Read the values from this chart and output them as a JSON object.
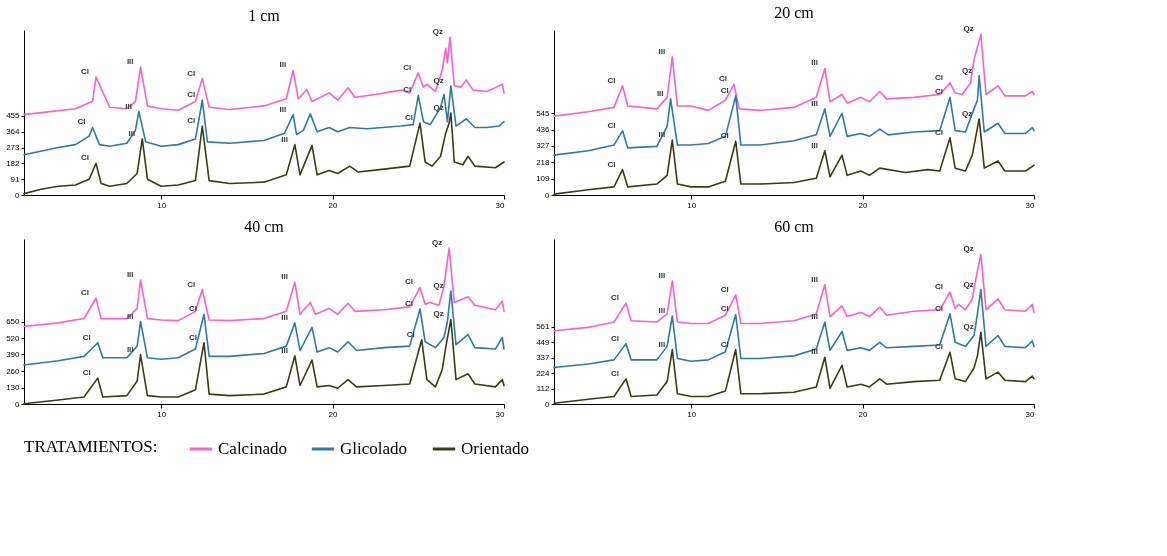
{
  "chart_data": [
    {
      "type": "line",
      "title": "1 cm",
      "legend_title": "TRATAMIENTOS:",
      "legend": "bottom",
      "xlim": [
        2,
        30
      ],
      "ylim": [
        0,
        950
      ],
      "xticks": [
        10,
        20,
        30
      ],
      "yticks": [
        0,
        91,
        182,
        273,
        364,
        455
      ],
      "series": [
        {
          "name": "Calcinado",
          "color": "#ff5fc8",
          "x": [
            2,
            5,
            6,
            6.2,
            7,
            8,
            8.5,
            8.8,
            9.2,
            10,
            11,
            12,
            12.4,
            12.8,
            14,
            16,
            17.3,
            17.7,
            18,
            18.5,
            18.8,
            19.8,
            20.3,
            20.9,
            21.3,
            22.5,
            24,
            24.5,
            25,
            25.3,
            25.5,
            26,
            26.4,
            26.6,
            26.7,
            26.85,
            27.1,
            27.5,
            27.8,
            28.2,
            29,
            29.9,
            30
          ],
          "values": [
            463,
            497,
            540,
            679,
            505,
            497,
            538,
            736,
            513,
            497,
            488,
            538,
            670,
            505,
            492,
            513,
            554,
            717,
            554,
            607,
            538,
            588,
            546,
            617,
            563,
            579,
            604,
            588,
            703,
            621,
            637,
            596,
            720,
            844,
            761,
            910,
            629,
            621,
            662,
            604,
            596,
            637,
            588
          ]
        },
        {
          "name": "Glicolado",
          "color": "#2b7ba8",
          "x": [
            2,
            4,
            5,
            5.8,
            6,
            6.4,
            7,
            8,
            8.5,
            8.7,
            9.1,
            10,
            11,
            12,
            12.3,
            12.4,
            12.7,
            14,
            16,
            17.2,
            17.7,
            17.9,
            18.3,
            18.7,
            19.1,
            19.8,
            20.3,
            21,
            22,
            24,
            24.7,
            25,
            25.3,
            25.7,
            26.3,
            26.5,
            26.7,
            26.9,
            27.2,
            27.8,
            28.3,
            29,
            29.7,
            30
          ],
          "values": [
            232,
            273,
            290,
            339,
            389,
            290,
            281,
            298,
            372,
            480,
            306,
            281,
            290,
            323,
            488,
            546,
            306,
            298,
            314,
            356,
            463,
            348,
            372,
            467,
            364,
            389,
            364,
            389,
            381,
            397,
            405,
            574,
            422,
            405,
            505,
            579,
            422,
            629,
            397,
            439,
            389,
            389,
            397,
            422
          ]
        },
        {
          "name": "Orientado",
          "color": "#3c3c14",
          "x": [
            2,
            3,
            4,
            5,
            5.8,
            6.2,
            6.5,
            7,
            8,
            8.6,
            8.9,
            9.2,
            10,
            11,
            12,
            12.4,
            12.8,
            14,
            16,
            17.3,
            17.8,
            18.1,
            18.8,
            19.1,
            19.8,
            20.3,
            21,
            21.5,
            23,
            24.5,
            25.1,
            25.4,
            25.8,
            26.3,
            26.6,
            26.8,
            26.9,
            27.1,
            27.6,
            27.9,
            28.3,
            29.5,
            30
          ],
          "values": [
            8,
            33,
            50,
            58,
            91,
            182,
            66,
            50,
            66,
            124,
            323,
            91,
            50,
            58,
            83,
            397,
            83,
            66,
            74,
            116,
            290,
            116,
            286,
            116,
            141,
            124,
            166,
            132,
            149,
            166,
            414,
            190,
            166,
            223,
            356,
            414,
            472,
            190,
            174,
            223,
            166,
            157,
            190
          ]
        }
      ],
      "annotations": [
        {
          "text": "Cl",
          "x": 6.2,
          "y": 679
        },
        {
          "text": "Ill",
          "x": 8.8,
          "y": 736
        },
        {
          "text": "Cl",
          "x": 12.4,
          "y": 670
        },
        {
          "text": "Ill",
          "x": 17.7,
          "y": 717
        },
        {
          "text": "Cl",
          "x": 25,
          "y": 703
        },
        {
          "text": "Qz",
          "x": 26.85,
          "y": 910
        },
        {
          "text": "Cl",
          "x": 6,
          "y": 389
        },
        {
          "text": "Ill",
          "x": 8.7,
          "y": 480
        },
        {
          "text": "Cl",
          "x": 12.4,
          "y": 546
        },
        {
          "text": "Ill",
          "x": 17.7,
          "y": 463
        },
        {
          "text": "Cl",
          "x": 25,
          "y": 574
        },
        {
          "text": "Qz",
          "x": 26.9,
          "y": 629
        },
        {
          "text": "Cl",
          "x": 6.2,
          "y": 182
        },
        {
          "text": "Ill",
          "x": 8.9,
          "y": 323
        },
        {
          "text": "Cl",
          "x": 12.4,
          "y": 397
        },
        {
          "text": "Ill",
          "x": 17.8,
          "y": 290
        },
        {
          "text": "Cl",
          "x": 25.1,
          "y": 414
        },
        {
          "text": "Qz",
          "x": 26.9,
          "y": 472
        }
      ]
    },
    {
      "type": "line",
      "title": "20 cm",
      "xlim": [
        2,
        30
      ],
      "ylim": [
        0,
        1100
      ],
      "xticks": [
        10,
        20,
        30
      ],
      "yticks": [
        0,
        109,
        218,
        327,
        436,
        545
      ],
      "series": [
        {
          "name": "Calcinado",
          "color": "#ff5fc8",
          "x": [
            2,
            4,
            5.5,
            6.0,
            6.3,
            8,
            8.6,
            8.9,
            9.2,
            10,
            11,
            12,
            12.5,
            12.8,
            14,
            16,
            17.3,
            17.8,
            18.1,
            18.8,
            19.1,
            19.9,
            20.4,
            21,
            21.4,
            23,
            24.5,
            25.1,
            25.4,
            25.8,
            26.3,
            26.5,
            26.9,
            27.2,
            27.9,
            28.3,
            29.5,
            29.9,
            30
          ],
          "values": [
            526,
            555,
            584,
            728,
            593,
            574,
            651,
            921,
            593,
            593,
            564,
            632,
            738,
            574,
            564,
            584,
            651,
            844,
            622,
            670,
            612,
            651,
            622,
            690,
            641,
            651,
            670,
            747,
            680,
            670,
            747,
            901,
            1071,
            670,
            728,
            661,
            661,
            690,
            670
          ]
        },
        {
          "name": "Glicolado",
          "color": "#2b7ba8",
          "x": [
            2,
            4,
            5.5,
            6.0,
            6.3,
            8,
            8.6,
            8.8,
            9.2,
            10,
            11,
            12,
            12.6,
            12.9,
            14,
            16,
            17.3,
            17.8,
            18.1,
            18.8,
            19.1,
            19.9,
            20.4,
            21,
            21.5,
            23,
            24.5,
            25.1,
            25.4,
            26,
            26.5,
            26.7,
            26.8,
            27.1,
            27.9,
            28.3,
            29.5,
            29.9,
            30
          ],
          "values": [
            266,
            295,
            333,
            429,
            314,
            324,
            458,
            641,
            333,
            333,
            343,
            391,
            661,
            333,
            333,
            362,
            401,
            574,
            391,
            545,
            391,
            410,
            391,
            439,
            401,
            420,
            429,
            651,
            429,
            420,
            574,
            632,
            795,
            420,
            478,
            410,
            410,
            449,
            429
          ]
        },
        {
          "name": "Orientado",
          "color": "#3c3c14",
          "x": [
            2,
            4,
            5.5,
            6.0,
            6.3,
            8,
            8.6,
            8.9,
            9.2,
            10,
            11,
            12,
            12.6,
            12.9,
            14,
            16,
            17.3,
            17.8,
            18.1,
            18.8,
            19.1,
            19.9,
            20.4,
            21,
            22.5,
            23.8,
            24.5,
            25.1,
            25.4,
            26,
            26.4,
            26.8,
            27.1,
            27.9,
            28.3,
            29.5,
            30
          ],
          "values": [
            6,
            35,
            54,
            169,
            54,
            73,
            131,
            366,
            73,
            54,
            54,
            92,
            358,
            73,
            73,
            83,
            112,
            295,
            121,
            266,
            131,
            160,
            131,
            179,
            150,
            169,
            160,
            381,
            179,
            160,
            266,
            507,
            179,
            227,
            160,
            160,
            198
          ]
        }
      ],
      "annotations": [
        {
          "text": "Cl",
          "x": 6.0,
          "y": 728
        },
        {
          "text": "Ill",
          "x": 8.9,
          "y": 921
        },
        {
          "text": "Cl",
          "x": 12.5,
          "y": 738
        },
        {
          "text": "Ill",
          "x": 17.8,
          "y": 844
        },
        {
          "text": "Cl",
          "x": 25.1,
          "y": 747
        },
        {
          "text": "Qz",
          "x": 26.9,
          "y": 1071
        },
        {
          "text": "Cl",
          "x": 6.0,
          "y": 429
        },
        {
          "text": "Ill",
          "x": 8.8,
          "y": 641
        },
        {
          "text": "Cl",
          "x": 12.6,
          "y": 661
        },
        {
          "text": "Ill",
          "x": 17.8,
          "y": 574
        },
        {
          "text": "Cl",
          "x": 25.1,
          "y": 651
        },
        {
          "text": "Qz",
          "x": 26.8,
          "y": 795
        },
        {
          "text": "Cl",
          "x": 6.0,
          "y": 169
        },
        {
          "text": "Ill",
          "x": 8.9,
          "y": 366
        },
        {
          "text": "Cl",
          "x": 12.6,
          "y": 358
        },
        {
          "text": "Ill",
          "x": 17.8,
          "y": 295
        },
        {
          "text": "Cl",
          "x": 25.1,
          "y": 381
        },
        {
          "text": "Qz",
          "x": 26.8,
          "y": 507
        }
      ]
    },
    {
      "type": "line",
      "title": "40 cm",
      "xlim": [
        2,
        30
      ],
      "ylim": [
        0,
        1300
      ],
      "xticks": [
        10,
        20,
        30
      ],
      "yticks": [
        0,
        130,
        260,
        390,
        520,
        650
      ],
      "series": [
        {
          "name": "Calcinado",
          "color": "#ff5fc8",
          "x": [
            2,
            4,
            5.5,
            6.2,
            6.5,
            8,
            8.6,
            8.8,
            9.2,
            10,
            11,
            12,
            12.4,
            12.8,
            14,
            16,
            17.3,
            17.8,
            18.1,
            18.7,
            19,
            19.8,
            20.3,
            20.9,
            21.3,
            23,
            24.5,
            25.1,
            25.4,
            25.7,
            26.2,
            26.5,
            26.8,
            27.1,
            27.9,
            28.3,
            29.5,
            29.9,
            30
          ],
          "values": [
            611,
            639,
            673,
            833,
            673,
            673,
            753,
            977,
            673,
            662,
            657,
            730,
            902,
            662,
            657,
            673,
            730,
            959,
            707,
            799,
            707,
            753,
            707,
            794,
            730,
            742,
            765,
            918,
            787,
            799,
            778,
            925,
            1229,
            799,
            845,
            778,
            742,
            810,
            730
          ]
        },
        {
          "name": "Glicolado",
          "color": "#2b7ba8",
          "x": [
            2,
            4,
            5.5,
            6.3,
            6.6,
            8,
            8.6,
            8.8,
            9.2,
            10,
            11,
            12,
            12.5,
            12.8,
            14,
            16,
            17.3,
            17.8,
            18.1,
            18.8,
            19.1,
            19.8,
            20.3,
            20.9,
            21.4,
            23,
            24.5,
            25.1,
            25.4,
            26,
            26.5,
            26.7,
            26.9,
            27.2,
            27.9,
            28.3,
            29.5,
            29.9,
            30
          ],
          "values": [
            307,
            341,
            375,
            483,
            364,
            364,
            456,
            650,
            364,
            352,
            364,
            433,
            707,
            375,
            375,
            398,
            456,
            639,
            421,
            604,
            410,
            444,
            410,
            490,
            421,
            444,
            456,
            749,
            490,
            444,
            524,
            650,
            890,
            467,
            547,
            444,
            433,
            524,
            433
          ]
        },
        {
          "name": "Orientado",
          "color": "#3c3c14",
          "x": [
            2,
            4,
            5.5,
            6.3,
            6.6,
            8,
            8.6,
            8.8,
            9.2,
            10,
            11,
            12,
            12.5,
            12.8,
            14,
            16,
            17.3,
            17.8,
            18.1,
            18.8,
            19.1,
            19.8,
            20.3,
            20.9,
            21.4,
            23,
            24.5,
            25.2,
            25.5,
            26,
            26.4,
            26.6,
            26.9,
            27.2,
            27.9,
            28.3,
            29.5,
            29.9,
            30
          ],
          "values": [
            2,
            32,
            55,
            204,
            55,
            66,
            181,
            387,
            66,
            55,
            55,
            112,
            483,
            78,
            66,
            78,
            135,
            380,
            146,
            346,
            135,
            146,
            124,
            192,
            135,
            146,
            158,
            506,
            192,
            135,
            272,
            444,
            666,
            192,
            238,
            158,
            135,
            192,
            146
          ]
        }
      ],
      "annotations": [
        {
          "text": "Cl",
          "x": 6.2,
          "y": 833
        },
        {
          "text": "Ill",
          "x": 8.8,
          "y": 977
        },
        {
          "text": "Cl",
          "x": 12.4,
          "y": 902
        },
        {
          "text": "Ill",
          "x": 17.8,
          "y": 959
        },
        {
          "text": "Cl",
          "x": 25.1,
          "y": 918
        },
        {
          "text": "Qz",
          "x": 26.8,
          "y": 1229
        },
        {
          "text": "Cl",
          "x": 6.3,
          "y": 483
        },
        {
          "text": "Ill",
          "x": 8.8,
          "y": 650
        },
        {
          "text": "Cl",
          "x": 12.5,
          "y": 707
        },
        {
          "text": "Ill",
          "x": 17.8,
          "y": 639
        },
        {
          "text": "Cl",
          "x": 25.1,
          "y": 749
        },
        {
          "text": "Qz",
          "x": 26.9,
          "y": 890
        },
        {
          "text": "Cl",
          "x": 6.3,
          "y": 204
        },
        {
          "text": "Ill",
          "x": 8.8,
          "y": 387
        },
        {
          "text": "Cl",
          "x": 12.5,
          "y": 483
        },
        {
          "text": "Ill",
          "x": 17.8,
          "y": 380
        },
        {
          "text": "Cl",
          "x": 25.2,
          "y": 506
        },
        {
          "text": "Qz",
          "x": 26.9,
          "y": 666
        }
      ]
    },
    {
      "type": "line",
      "title": "60 cm",
      "xlim": [
        2,
        30
      ],
      "ylim": [
        0,
        1200
      ],
      "xticks": [
        10,
        20,
        30
      ],
      "yticks": [
        0,
        112,
        224,
        337,
        449,
        561
      ],
      "series": [
        {
          "name": "Calcinado",
          "color": "#ff5fc8",
          "x": [
            2,
            4,
            5.5,
            6.2,
            6.5,
            8,
            8.6,
            8.9,
            9.2,
            10,
            11,
            12,
            12.6,
            12.9,
            14,
            16,
            17.3,
            17.8,
            18.1,
            18.8,
            19.1,
            19.9,
            20.4,
            21,
            21.4,
            23,
            24.5,
            25.1,
            25.4,
            25.6,
            26,
            26.4,
            26.7,
            26.9,
            27.2,
            27.9,
            28.3,
            29.5,
            29.9,
            30
          ],
          "values": [
            533,
            557,
            596,
            734,
            606,
            596,
            655,
            895,
            596,
            586,
            586,
            645,
            793,
            586,
            586,
            606,
            655,
            868,
            636,
            714,
            636,
            665,
            636,
            705,
            645,
            675,
            685,
            813,
            695,
            724,
            685,
            764,
            970,
            1088,
            685,
            764,
            685,
            675,
            724,
            665
          ]
        },
        {
          "name": "Glicolado",
          "color": "#2b7ba8",
          "x": [
            2,
            4,
            5.5,
            6.2,
            6.5,
            8,
            8.6,
            8.9,
            9.2,
            10,
            11,
            12,
            12.6,
            12.9,
            14,
            16,
            17.3,
            17.8,
            18.1,
            18.8,
            19.1,
            19.9,
            20.4,
            21,
            21.4,
            23,
            24.5,
            25.1,
            25.4,
            26,
            26.5,
            26.7,
            26.9,
            27.2,
            27.9,
            28.3,
            29.5,
            29.9,
            30
          ],
          "values": [
            266,
            291,
            321,
            439,
            321,
            321,
            419,
            640,
            331,
            311,
            321,
            380,
            651,
            331,
            331,
            350,
            400,
            596,
            390,
            527,
            390,
            409,
            390,
            449,
            409,
            419,
            429,
            655,
            449,
            419,
            498,
            655,
            832,
            419,
            498,
            419,
            409,
            459,
            419
          ]
        },
        {
          "name": "Orientado",
          "color": "#3c3c14",
          "x": [
            2,
            4,
            5.5,
            6.2,
            6.5,
            8,
            8.6,
            8.9,
            9.2,
            10,
            11,
            12,
            12.6,
            12.9,
            14,
            16,
            17.3,
            17.8,
            18.1,
            18.8,
            19.1,
            19.9,
            20.4,
            21,
            21.4,
            23,
            24.5,
            25.1,
            25.4,
            26,
            26.5,
            26.7,
            26.9,
            27.2,
            27.9,
            28.3,
            29.5,
            29.9,
            30
          ],
          "values": [
            6,
            35,
            55,
            183,
            55,
            65,
            163,
            396,
            75,
            55,
            55,
            94,
            396,
            75,
            75,
            85,
            124,
            340,
            114,
            281,
            124,
            144,
            124,
            183,
            144,
            163,
            173,
            376,
            183,
            163,
            262,
            350,
            522,
            183,
            232,
            173,
            163,
            203,
            183
          ]
        }
      ],
      "annotations": [
        {
          "text": "Cl",
          "x": 6.2,
          "y": 734
        },
        {
          "text": "Ill",
          "x": 8.9,
          "y": 895
        },
        {
          "text": "Cl",
          "x": 12.6,
          "y": 793
        },
        {
          "text": "Ill",
          "x": 17.8,
          "y": 868
        },
        {
          "text": "Cl",
          "x": 25.1,
          "y": 813
        },
        {
          "text": "Qz",
          "x": 26.9,
          "y": 1088
        },
        {
          "text": "Cl",
          "x": 6.2,
          "y": 439
        },
        {
          "text": "Ill",
          "x": 8.9,
          "y": 640
        },
        {
          "text": "Cl",
          "x": 12.6,
          "y": 651
        },
        {
          "text": "Ill",
          "x": 17.8,
          "y": 596
        },
        {
          "text": "Cl",
          "x": 25.1,
          "y": 655
        },
        {
          "text": "Qz",
          "x": 26.9,
          "y": 832
        },
        {
          "text": "Cl",
          "x": 6.2,
          "y": 183
        },
        {
          "text": "Ill",
          "x": 8.9,
          "y": 396
        },
        {
          "text": "Cl",
          "x": 12.6,
          "y": 396
        },
        {
          "text": "Ill",
          "x": 17.8,
          "y": 340
        },
        {
          "text": "Cl",
          "x": 25.1,
          "y": 376
        },
        {
          "text": "Qz",
          "x": 26.9,
          "y": 522
        }
      ]
    }
  ]
}
